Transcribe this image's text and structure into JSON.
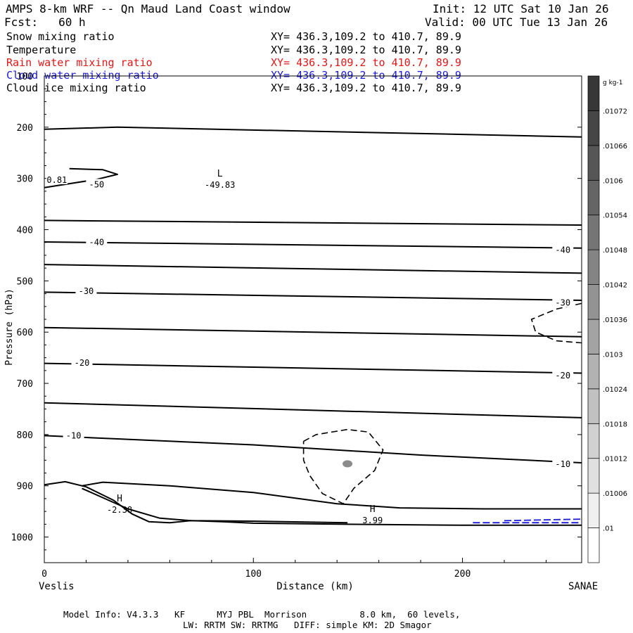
{
  "header": {
    "title": "AMPS 8-km WRF -- Qn Maud Land Coast window",
    "init": "Init: 12 UTC Sat 10 Jan 26",
    "fcst": "Fcst:   60 h",
    "valid": "Valid: 00 UTC Tue 13 Jan 26"
  },
  "fields": [
    {
      "name": "Snow mixing ratio",
      "xy": "XY= 436.3,109.2 to 410.7, 89.9",
      "color": "#000000"
    },
    {
      "name": "Temperature",
      "xy": "XY= 436.3,109.2 to 410.7, 89.9",
      "color": "#000000"
    },
    {
      "name": "Rain water mixing ratio",
      "xy": "XY= 436.3,109.2 to 410.7, 89.9",
      "color": "#e01818"
    },
    {
      "name": "Cloud water mixing ratio",
      "xy": "XY= 436.3,109.2 to 410.7, 89.9",
      "color": "#1a1ad8"
    },
    {
      "name": "Cloud ice mixing ratio",
      "xy": "XY= 436.3,109.2 to 410.7, 89.9",
      "color": "#000000"
    }
  ],
  "chart_data": {
    "type": "line",
    "title": "AMPS 8-km WRF -- Qn Maud Land Coast window",
    "xlabel": "Distance (km)",
    "ylabel": "Pressure (hPa)",
    "xlim": [
      0,
      257
    ],
    "ylim": [
      1050,
      100
    ],
    "x_ticks": [
      0,
      100,
      200
    ],
    "y_ticks": [
      100,
      200,
      300,
      400,
      500,
      600,
      700,
      800,
      900,
      1000
    ],
    "left_endpoint": "Veslis",
    "right_endpoint": "SANAE",
    "temperature_isotherms": [
      {
        "label": "",
        "points": [
          [
            0,
            204
          ],
          [
            35,
            200
          ],
          [
            257,
            219
          ]
        ]
      },
      {
        "label": "-50",
        "points": [
          [
            12,
            281
          ],
          [
            28,
            283
          ],
          [
            35,
            292
          ],
          [
            25,
            302
          ],
          [
            0,
            318
          ]
        ]
      },
      {
        "label": "",
        "points": [
          [
            0,
            382
          ],
          [
            257,
            391
          ]
        ]
      },
      {
        "label": "-40",
        "points": [
          [
            0,
            424
          ],
          [
            257,
            436
          ]
        ]
      },
      {
        "label": "",
        "points": [
          [
            0,
            468
          ],
          [
            257,
            485
          ]
        ]
      },
      {
        "label": "-30",
        "points": [
          [
            0,
            522
          ],
          [
            257,
            538
          ]
        ]
      },
      {
        "label": "",
        "points": [
          [
            0,
            591
          ],
          [
            257,
            609
          ]
        ]
      },
      {
        "label": "-20",
        "points": [
          [
            0,
            661
          ],
          [
            257,
            680
          ]
        ]
      },
      {
        "label": "",
        "points": [
          [
            0,
            738
          ],
          [
            257,
            767
          ]
        ]
      },
      {
        "label": "-10",
        "points": [
          [
            0,
            802
          ],
          [
            100,
            820
          ],
          [
            180,
            840
          ],
          [
            257,
            855
          ]
        ]
      },
      {
        "label": "",
        "points": [
          [
            0,
            898
          ],
          [
            10,
            892
          ],
          [
            20,
            902
          ],
          [
            33,
            928
          ],
          [
            42,
            955
          ],
          [
            50,
            970
          ],
          [
            60,
            972
          ],
          [
            70,
            968
          ],
          [
            85,
            970
          ],
          [
            100,
            973
          ],
          [
            145,
            975
          ],
          [
            200,
            977
          ],
          [
            257,
            977
          ]
        ]
      },
      {
        "label": "",
        "points": [
          [
            18,
            900
          ],
          [
            28,
            893
          ],
          [
            60,
            900
          ],
          [
            100,
            913
          ],
          [
            140,
            935
          ],
          [
            170,
            943
          ],
          [
            210,
            945
          ],
          [
            257,
            945
          ]
        ]
      },
      {
        "label": "",
        "points": [
          [
            18,
            905
          ],
          [
            40,
            945
          ],
          [
            55,
            963
          ],
          [
            70,
            968
          ],
          [
            100,
            969
          ],
          [
            145,
            972
          ]
        ]
      }
    ],
    "isotherm_labels": [
      {
        "text": "-50",
        "x": 25,
        "p": 312
      },
      {
        "text": "-40",
        "x": 25,
        "p": 425
      },
      {
        "text": "-40",
        "x": 248,
        "p": 440
      },
      {
        "text": "-30",
        "x": 20,
        "p": 520
      },
      {
        "text": "-30",
        "x": 248,
        "p": 543
      },
      {
        "text": "-20",
        "x": 18,
        "p": 660
      },
      {
        "text": "-20",
        "x": 248,
        "p": 685
      },
      {
        "text": "-10",
        "x": 14,
        "p": 802
      },
      {
        "text": "-10",
        "x": 248,
        "p": 858
      },
      {
        "text": "0.81",
        "x": 6,
        "p": 303
      }
    ],
    "extrema": [
      {
        "type": "L",
        "value": "-49.83",
        "x": 84,
        "p": 310
      },
      {
        "type": "H",
        "value": "-2.38",
        "x": 36,
        "p": 944
      },
      {
        "type": "H",
        "value": "3.99",
        "x": 157,
        "p": 965
      }
    ],
    "snow_mixing_ratio_contours": [
      {
        "points": [
          [
            124,
            813
          ],
          [
            130,
            800
          ],
          [
            145,
            790
          ],
          [
            155,
            795
          ],
          [
            162,
            830
          ],
          [
            158,
            870
          ],
          [
            148,
            905
          ],
          [
            143,
            935
          ],
          [
            133,
            915
          ],
          [
            127,
            880
          ],
          [
            124,
            850
          ],
          [
            124,
            813
          ]
        ]
      },
      {
        "points": [
          [
            257,
            544
          ],
          [
            245,
            555
          ],
          [
            233,
            575
          ],
          [
            235,
            600
          ],
          [
            245,
            617
          ],
          [
            257,
            621
          ]
        ]
      }
    ],
    "cloud_water_contours": [
      {
        "points": [
          [
            205,
            972
          ],
          [
            257,
            972
          ]
        ]
      },
      {
        "points": [
          [
            220,
            968
          ],
          [
            257,
            965
          ]
        ]
      }
    ],
    "shaded_max": {
      "x": 145,
      "p": 857
    },
    "colorbar": {
      "units": "g kg-1",
      "labels": [
        ".01",
        ".01006",
        ".01012",
        ".01018",
        ".01024",
        ".0103",
        ".01036",
        ".01042",
        ".01048",
        ".01054",
        ".0106",
        ".01066",
        ".01072"
      ]
    }
  },
  "footer": {
    "line1": "Model Info: V4.3.3   KF      MYJ PBL  Morrison          8.0 km,  60 levels,",
    "line2": "LW: RRTM SW: RRTMG   DIFF: simple KM: 2D Smagor"
  }
}
